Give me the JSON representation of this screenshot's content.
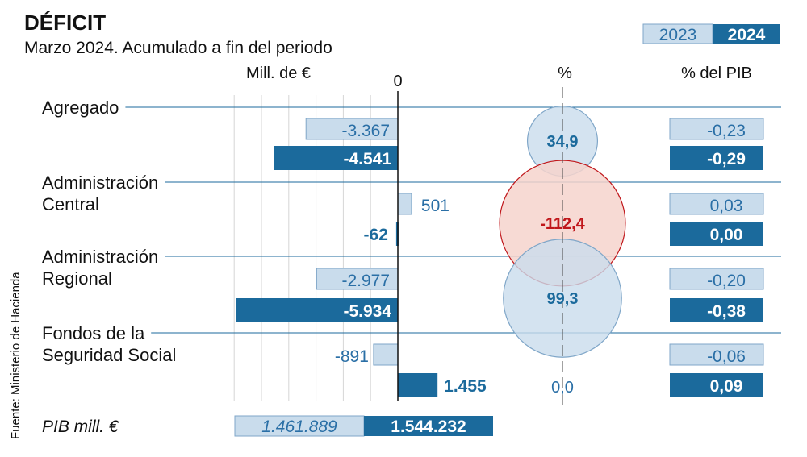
{
  "title": "DÉFICIT",
  "subtitle": "Marzo 2024. Acumulado a fin del periodo",
  "source": "Fuente: Ministerio de Hacienda",
  "legend": {
    "y2023": "2023",
    "y2024": "2024"
  },
  "colors": {
    "c2023_fill": "#c9dcec",
    "c2023_stroke": "#7fa6c8",
    "c2023_text": "#2a6fa6",
    "c2024": "#1b6a9c",
    "neg_circle_fill": "#f6d3cc",
    "neg_circle_stroke": "#c0171b",
    "neg_text": "#c0171b",
    "pos_circle_fill": "#c9dcec",
    "pos_circle_stroke": "#7fa6c8",
    "grid": "#d6d6d6",
    "rule": "#1b6a9c"
  },
  "chart_data": {
    "type": "bar",
    "orientation": "horizontal",
    "title": "DÉFICIT",
    "subtitle": "Marzo 2024. Acumulado a fin del periodo",
    "columns": {
      "amount": "Mill. de €",
      "amount_zero": "0",
      "pct": "%",
      "gdp": "% del PIB"
    },
    "xlim": [
      -7000,
      2000
    ],
    "grid_step": 1000,
    "categories": [
      {
        "lines": [
          "Agregado"
        ],
        "v2023": -3367,
        "v2023_label": "-3.367",
        "v2024": -4541,
        "v2024_label": "-4.541",
        "pct": 34.9,
        "pct_label": "34,9",
        "gdp2023": "-0,23",
        "gdp2024": "-0,29"
      },
      {
        "lines": [
          "Administración",
          "Central"
        ],
        "v2023": 501,
        "v2023_label": "501",
        "v2024": -62,
        "v2024_label": "-62",
        "pct": -112.4,
        "pct_label": "-112,4",
        "gdp2023": "0,03",
        "gdp2024": "0,00"
      },
      {
        "lines": [
          "Administración",
          "Regional"
        ],
        "v2023": -2977,
        "v2023_label": "-2.977",
        "v2024": -5934,
        "v2024_label": "-5.934",
        "pct": 99.3,
        "pct_label": "99,3",
        "gdp2023": "-0,20",
        "gdp2024": "-0,38"
      },
      {
        "lines": [
          "Fondos de la",
          "Seguridad Social"
        ],
        "v2023": -891,
        "v2023_label": "-891",
        "v2024": 1455,
        "v2024_label": "1.455",
        "pct": 0.0,
        "pct_label": "0,0",
        "gdp2023": "-0,06",
        "gdp2024": "0,09"
      }
    ],
    "gdp_row": {
      "label": "PIB mill. €",
      "v2023": "1.461.889",
      "v2024": "1.544.232"
    }
  }
}
